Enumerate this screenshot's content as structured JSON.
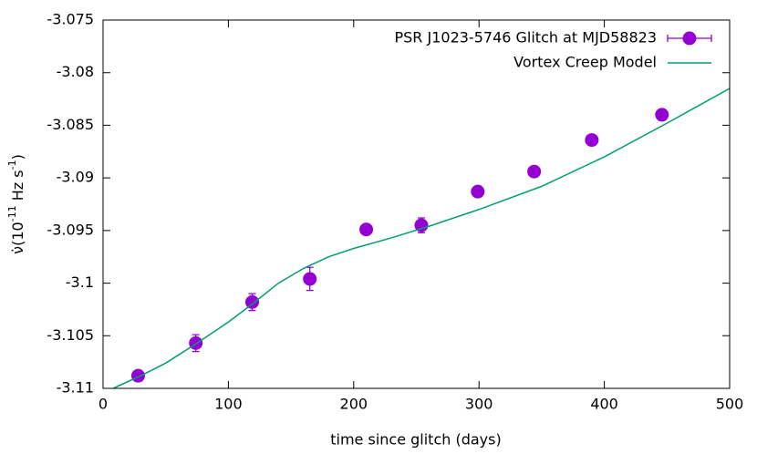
{
  "chart_data": {
    "type": "line",
    "x_label": "time since glitch (days)",
    "y_label": {
      "symbol": "ν̇",
      "pre": "(10",
      "exp1": "-11",
      "mid": " Hz s",
      "exp2": "-1",
      "post": ")"
    },
    "xlim": [
      0,
      500
    ],
    "xticks": [
      0,
      100,
      200,
      300,
      400,
      500
    ],
    "ylim": [
      -3.11,
      -3.075
    ],
    "yticks": [
      -3.11,
      -3.105,
      -3.1,
      -3.095,
      -3.09,
      -3.085,
      -3.08,
      -3.075
    ],
    "legend": "top-right",
    "series": [
      {
        "name": "PSR J1023-5746 Glitch at MJD58823",
        "type": "errorbar",
        "color": "#9400d3",
        "x": [
          28,
          74,
          119,
          165,
          210,
          254,
          299,
          344,
          390,
          446
        ],
        "values": [
          -3.1088,
          -3.1057,
          -3.1018,
          -3.0996,
          -3.0949,
          -3.0945,
          -3.0913,
          -3.0894,
          -3.0864,
          -3.084
        ],
        "errors": [
          0.0002,
          0.0008,
          0.0008,
          0.0011,
          0.0001,
          0.0007,
          0.0001,
          0.0001,
          0.0001,
          0.0001
        ]
      },
      {
        "name": "Vortex Creep Model",
        "type": "line",
        "color": "#009e73",
        "x": [
          8,
          30,
          50,
          75,
          100,
          120,
          140,
          160,
          180,
          200,
          230,
          260,
          300,
          350,
          400,
          450,
          500
        ],
        "values": [
          -3.11,
          -3.1088,
          -3.1076,
          -3.1057,
          -3.1037,
          -3.1019,
          -3.1,
          -3.0986,
          -3.0975,
          -3.0967,
          -3.0957,
          -3.0946,
          -3.093,
          -3.0908,
          -3.088,
          -3.0848,
          -3.0815
        ]
      }
    ]
  }
}
